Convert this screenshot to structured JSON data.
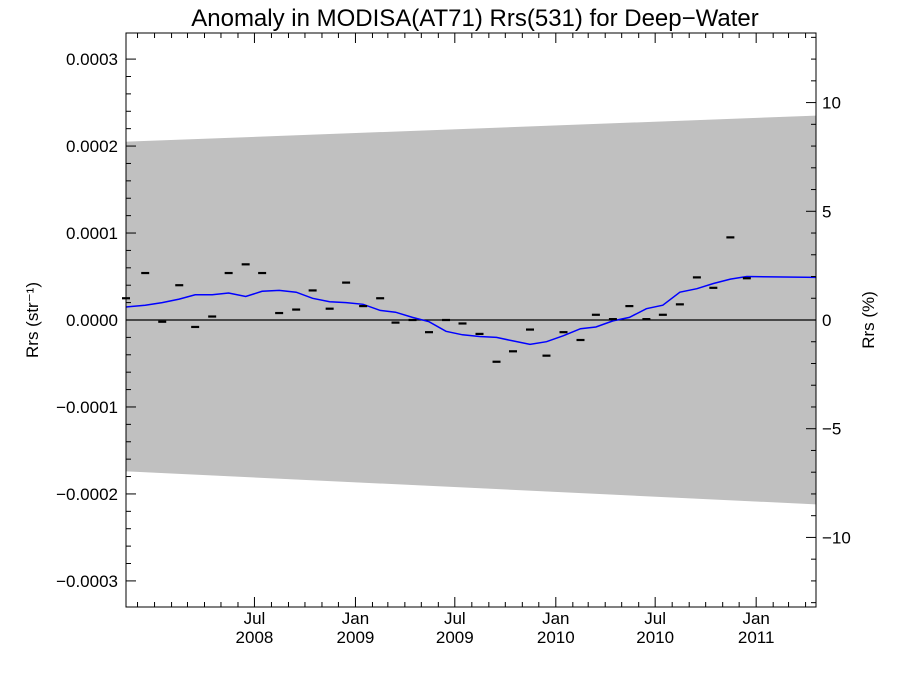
{
  "chart_data": {
    "type": "scatter",
    "title": "Anomaly in MODISA(AT71) Rrs(531) for Deep−Water",
    "ylabel_left": "Rrs (str⁻¹)",
    "ylabel_right": "Rrs (%)",
    "xlabel": "",
    "xlim": [
      "2007-11-10",
      "2011-04-20"
    ],
    "ylim_left": [
      -0.00033,
      0.00033
    ],
    "ylim_right": [
      -13.2,
      13.2
    ],
    "left_ticks": [
      {
        "value": 0.0003,
        "label": "0.0003"
      },
      {
        "value": 0.0002,
        "label": "0.0002"
      },
      {
        "value": 0.0001,
        "label": "0.0001"
      },
      {
        "value": 0.0,
        "label": "0.0000"
      },
      {
        "value": -0.0001,
        "label": "−0.0001"
      },
      {
        "value": -0.0002,
        "label": "−0.0002"
      },
      {
        "value": -0.0003,
        "label": "−0.0003"
      }
    ],
    "right_ticks": [
      {
        "value": 10,
        "label": "10"
      },
      {
        "value": 5,
        "label": "5"
      },
      {
        "value": 0,
        "label": "0"
      },
      {
        "value": -5,
        "label": "−5"
      },
      {
        "value": -10,
        "label": "−10"
      }
    ],
    "x_ticks": [
      {
        "date": "2008-07-01",
        "month": "Jul",
        "year": "2008"
      },
      {
        "date": "2009-01-01",
        "month": "Jan",
        "year": "2009"
      },
      {
        "date": "2009-07-01",
        "month": "Jul",
        "year": "2009"
      },
      {
        "date": "2010-01-01",
        "month": "Jan",
        "year": "2010"
      },
      {
        "date": "2010-07-01",
        "month": "Jul",
        "year": "2010"
      },
      {
        "date": "2011-01-01",
        "month": "Jan",
        "year": "2011"
      }
    ],
    "uncertainty_band": {
      "color": "#c0c0c0",
      "start": {
        "date": "2007-11-10",
        "upper": 0.000205,
        "lower": -0.000174
      },
      "end": {
        "date": "2011-04-20",
        "upper": 0.000235,
        "lower": -0.000212
      }
    },
    "zero_line": true,
    "grid": false,
    "series": [
      {
        "kind": "points",
        "marker": "dash",
        "color": "#000000",
        "points": [
          {
            "x": "2007-11-10",
            "y": 2.5e-05
          },
          {
            "x": "2007-12-15",
            "y": 5.4e-05
          },
          {
            "x": "2008-01-15",
            "y": -2e-06
          },
          {
            "x": "2008-02-15",
            "y": 4e-05
          },
          {
            "x": "2008-03-15",
            "y": -8e-06
          },
          {
            "x": "2008-04-15",
            "y": 4e-06
          },
          {
            "x": "2008-05-15",
            "y": 5.4e-05
          },
          {
            "x": "2008-06-15",
            "y": 6.4e-05
          },
          {
            "x": "2008-07-15",
            "y": 5.4e-05
          },
          {
            "x": "2008-08-15",
            "y": 8e-06
          },
          {
            "x": "2008-09-15",
            "y": 1.2e-05
          },
          {
            "x": "2008-10-15",
            "y": 3.4e-05
          },
          {
            "x": "2008-11-15",
            "y": 1.3e-05
          },
          {
            "x": "2008-12-15",
            "y": 4.3e-05
          },
          {
            "x": "2009-01-15",
            "y": 1.6e-05
          },
          {
            "x": "2009-02-15",
            "y": 2.5e-05
          },
          {
            "x": "2009-03-15",
            "y": -3e-06
          },
          {
            "x": "2009-04-15",
            "y": 0.0
          },
          {
            "x": "2009-05-15",
            "y": -1.4e-05
          },
          {
            "x": "2009-06-15",
            "y": 0.0
          },
          {
            "x": "2009-07-15",
            "y": -4e-06
          },
          {
            "x": "2009-08-15",
            "y": -1.6e-05
          },
          {
            "x": "2009-09-15",
            "y": -4.8e-05
          },
          {
            "x": "2009-10-15",
            "y": -3.6e-05
          },
          {
            "x": "2009-11-15",
            "y": -1.1e-05
          },
          {
            "x": "2009-12-15",
            "y": -4.1e-05
          },
          {
            "x": "2010-01-15",
            "y": -1.4e-05
          },
          {
            "x": "2010-02-15",
            "y": -2.3e-05
          },
          {
            "x": "2010-03-15",
            "y": 6e-06
          },
          {
            "x": "2010-04-15",
            "y": 1e-06
          },
          {
            "x": "2010-05-15",
            "y": 1.6e-05
          },
          {
            "x": "2010-06-15",
            "y": 1e-06
          },
          {
            "x": "2010-07-15",
            "y": 6e-06
          },
          {
            "x": "2010-08-15",
            "y": 1.8e-05
          },
          {
            "x": "2010-09-15",
            "y": 4.9e-05
          },
          {
            "x": "2010-10-15",
            "y": 3.7e-05
          },
          {
            "x": "2010-11-15",
            "y": 9.5e-05
          },
          {
            "x": "2010-12-15",
            "y": 4.8e-05
          }
        ]
      },
      {
        "kind": "line",
        "color": "#0000ff",
        "points": [
          {
            "x": "2007-11-10",
            "y": 1.5e-05
          },
          {
            "x": "2007-12-15",
            "y": 1.7e-05
          },
          {
            "x": "2008-01-15",
            "y": 2e-05
          },
          {
            "x": "2008-02-15",
            "y": 2.4e-05
          },
          {
            "x": "2008-03-15",
            "y": 2.9e-05
          },
          {
            "x": "2008-04-15",
            "y": 2.9e-05
          },
          {
            "x": "2008-05-15",
            "y": 3.1e-05
          },
          {
            "x": "2008-06-15",
            "y": 2.7e-05
          },
          {
            "x": "2008-07-15",
            "y": 3.3e-05
          },
          {
            "x": "2008-08-15",
            "y": 3.4e-05
          },
          {
            "x": "2008-09-15",
            "y": 3.2e-05
          },
          {
            "x": "2008-10-15",
            "y": 2.5e-05
          },
          {
            "x": "2008-11-15",
            "y": 2.1e-05
          },
          {
            "x": "2008-12-15",
            "y": 2e-05
          },
          {
            "x": "2009-01-15",
            "y": 1.8e-05
          },
          {
            "x": "2009-02-15",
            "y": 1.1e-05
          },
          {
            "x": "2009-03-15",
            "y": 9e-06
          },
          {
            "x": "2009-04-15",
            "y": 3e-06
          },
          {
            "x": "2009-05-15",
            "y": -2e-06
          },
          {
            "x": "2009-06-15",
            "y": -1.3e-05
          },
          {
            "x": "2009-07-15",
            "y": -1.7e-05
          },
          {
            "x": "2009-08-15",
            "y": -1.9e-05
          },
          {
            "x": "2009-09-15",
            "y": -2e-05
          },
          {
            "x": "2009-10-15",
            "y": -2.4e-05
          },
          {
            "x": "2009-11-15",
            "y": -2.8e-05
          },
          {
            "x": "2009-12-15",
            "y": -2.5e-05
          },
          {
            "x": "2010-01-15",
            "y": -1.8e-05
          },
          {
            "x": "2010-02-15",
            "y": -1e-05
          },
          {
            "x": "2010-03-15",
            "y": -8e-06
          },
          {
            "x": "2010-04-15",
            "y": -1e-06
          },
          {
            "x": "2010-05-15",
            "y": 3e-06
          },
          {
            "x": "2010-06-15",
            "y": 1.3e-05
          },
          {
            "x": "2010-07-15",
            "y": 1.7e-05
          },
          {
            "x": "2010-08-15",
            "y": 3.2e-05
          },
          {
            "x": "2010-09-15",
            "y": 3.6e-05
          },
          {
            "x": "2010-10-15",
            "y": 4.2e-05
          },
          {
            "x": "2010-11-15",
            "y": 4.7e-05
          },
          {
            "x": "2010-12-15",
            "y": 5e-05
          },
          {
            "x": "2011-04-20",
            "y": 4.9e-05
          }
        ]
      }
    ]
  }
}
